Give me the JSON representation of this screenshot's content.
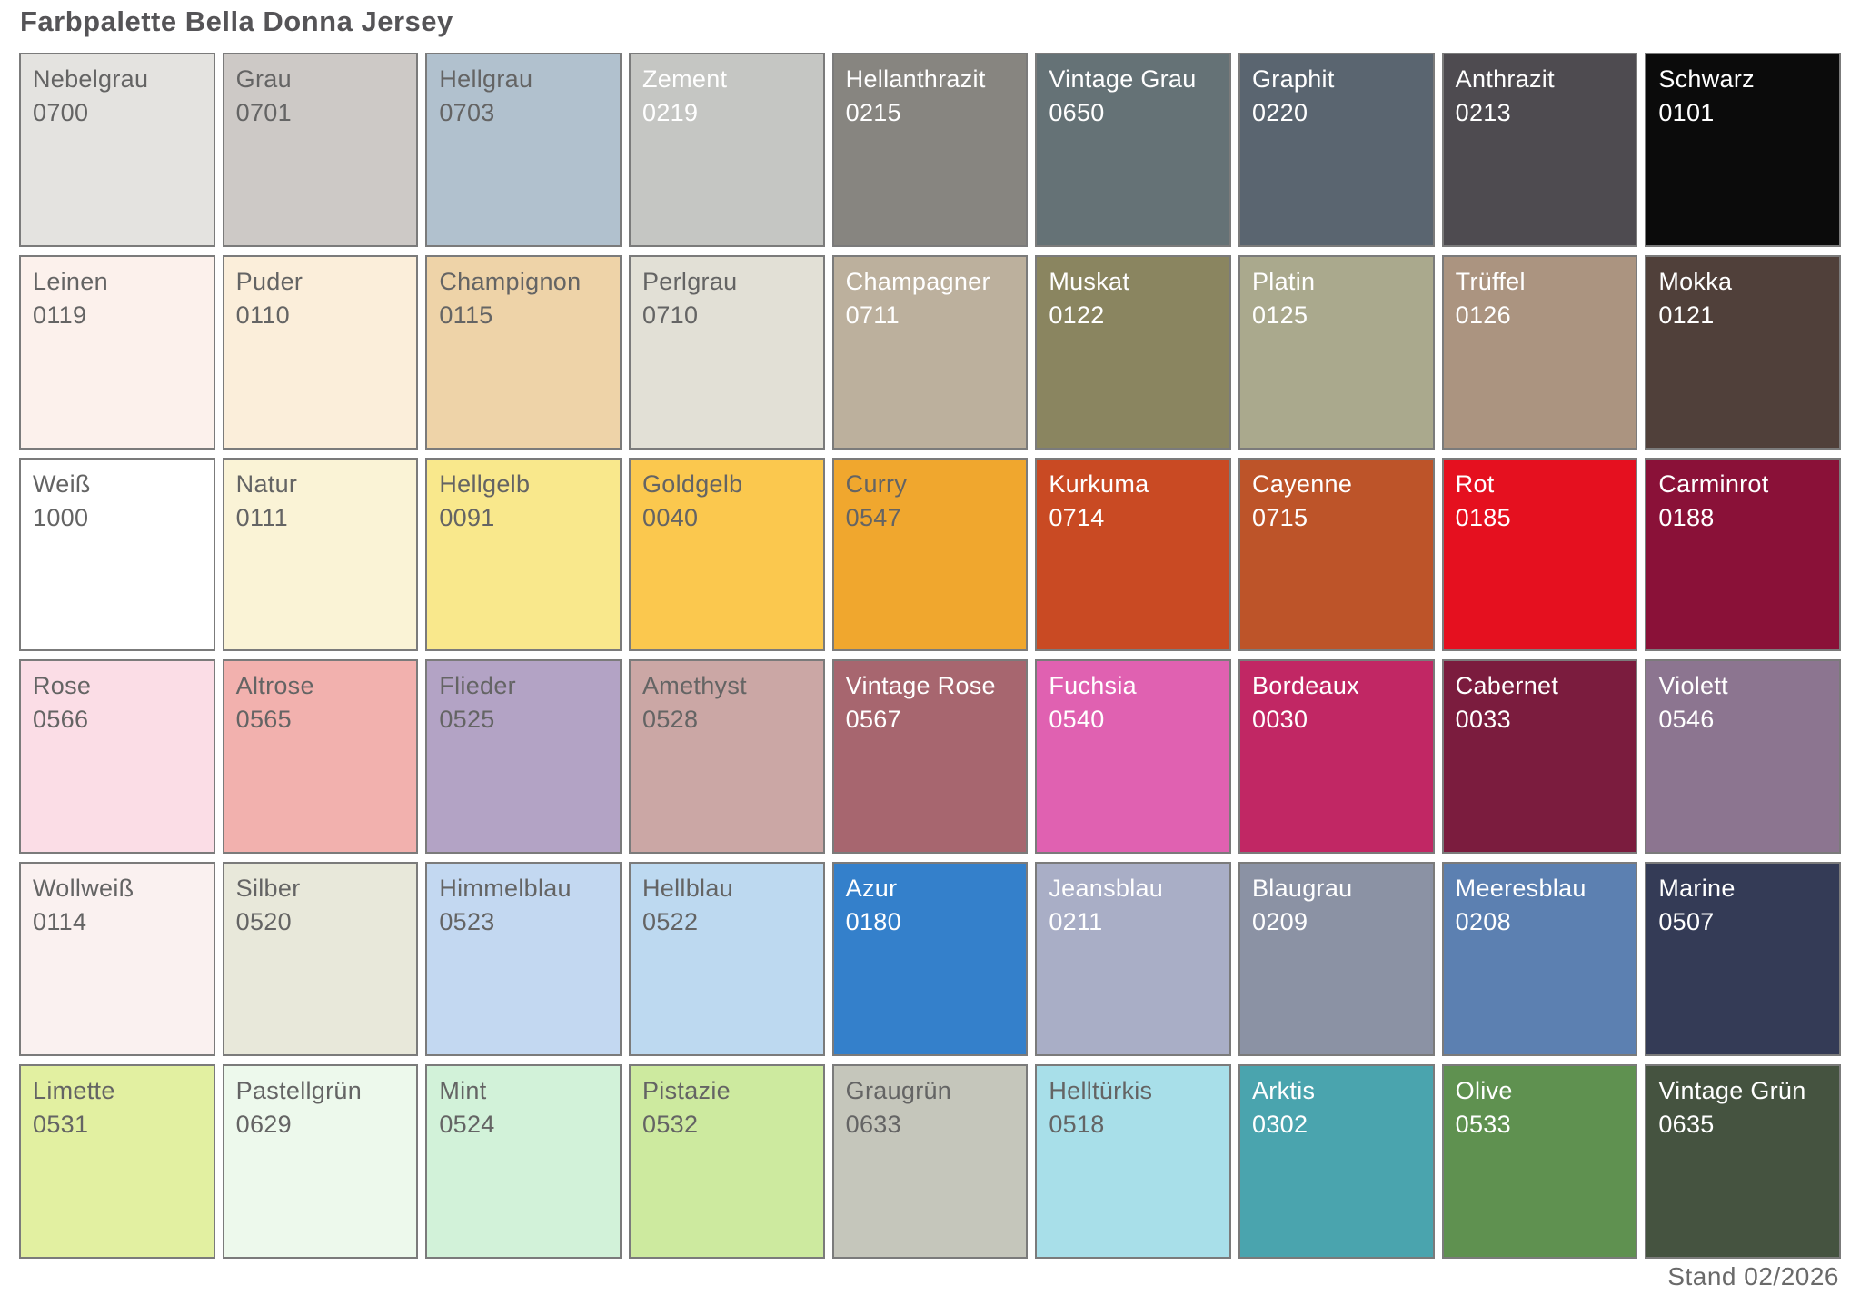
{
  "title": "Farbpalette Bella Donna Jersey",
  "footer": {
    "stand_label": "Stand 02/2026"
  },
  "palette": {
    "columns": 9,
    "rows": 6,
    "text_colors": {
      "dark": "#646464",
      "light": "#ffffff"
    },
    "border_color": "#7b7b7b",
    "swatches": [
      {
        "name": "Nebelgrau",
        "code": "0700",
        "color": "#e4e3e0",
        "text": "dark"
      },
      {
        "name": "Grau",
        "code": "0701",
        "color": "#cdc9c6",
        "text": "dark"
      },
      {
        "name": "Hellgrau",
        "code": "0703",
        "color": "#b1c1ce",
        "text": "dark"
      },
      {
        "name": "Zement",
        "code": "0219",
        "color": "#c5c6c3",
        "text": "light"
      },
      {
        "name": "Hellanthrazit",
        "code": "0215",
        "color": "#878580",
        "text": "light"
      },
      {
        "name": "Vintage Grau",
        "code": "0650",
        "color": "#657276",
        "text": "light"
      },
      {
        "name": "Graphit",
        "code": "0220",
        "color": "#5a6570",
        "text": "light"
      },
      {
        "name": "Anthrazit",
        "code": "0213",
        "color": "#4e4b50",
        "text": "light"
      },
      {
        "name": "Schwarz",
        "code": "0101",
        "color": "#0b0b0b",
        "text": "light"
      },
      {
        "name": "Leinen",
        "code": "0119",
        "color": "#fcf1ec",
        "text": "dark"
      },
      {
        "name": "Puder",
        "code": "0110",
        "color": "#fbeeda",
        "text": "dark"
      },
      {
        "name": "Champignon",
        "code": "0115",
        "color": "#eed3a8",
        "text": "dark"
      },
      {
        "name": "Perlgrau",
        "code": "0710",
        "color": "#e2e0d6",
        "text": "dark"
      },
      {
        "name": "Champagner",
        "code": "0711",
        "color": "#bcb09d",
        "text": "light"
      },
      {
        "name": "Muskat",
        "code": "0122",
        "color": "#8a8560",
        "text": "light"
      },
      {
        "name": "Platin",
        "code": "0125",
        "color": "#aaa98d",
        "text": "light"
      },
      {
        "name": "Trüffel",
        "code": "0126",
        "color": "#ab9480",
        "text": "light"
      },
      {
        "name": "Mokka",
        "code": "0121",
        "color": "#50403a",
        "text": "light"
      },
      {
        "name": "Weiß",
        "code": "1000",
        "color": "#ffffff",
        "text": "dark"
      },
      {
        "name": "Natur",
        "code": "0111",
        "color": "#faf3d6",
        "text": "dark"
      },
      {
        "name": "Hellgelb",
        "code": "0091",
        "color": "#f9e88c",
        "text": "dark"
      },
      {
        "name": "Goldgelb",
        "code": "0040",
        "color": "#fbc84e",
        "text": "dark"
      },
      {
        "name": "Curry",
        "code": "0547",
        "color": "#f0a72e",
        "text": "dark"
      },
      {
        "name": "Kurkuma",
        "code": "0714",
        "color": "#c94a23",
        "text": "light"
      },
      {
        "name": "Cayenne",
        "code": "0715",
        "color": "#bd5429",
        "text": "light"
      },
      {
        "name": "Rot",
        "code": "0185",
        "color": "#e5101f",
        "text": "light"
      },
      {
        "name": "Carminrot",
        "code": "0188",
        "color": "#8a1138",
        "text": "light"
      },
      {
        "name": "Rose",
        "code": "0566",
        "color": "#fbdde6",
        "text": "dark"
      },
      {
        "name": "Altrose",
        "code": "0565",
        "color": "#f2b1ae",
        "text": "dark"
      },
      {
        "name": "Flieder",
        "code": "0525",
        "color": "#b3a3c5",
        "text": "dark"
      },
      {
        "name": "Amethyst",
        "code": "0528",
        "color": "#cba7a5",
        "text": "dark"
      },
      {
        "name": "Vintage Rose",
        "code": "0567",
        "color": "#a7666f",
        "text": "light"
      },
      {
        "name": "Fuchsia",
        "code": "0540",
        "color": "#e061b1",
        "text": "light"
      },
      {
        "name": "Bordeaux",
        "code": "0030",
        "color": "#c12764",
        "text": "light"
      },
      {
        "name": "Cabernet",
        "code": "0033",
        "color": "#7b1c3e",
        "text": "light"
      },
      {
        "name": "Violett",
        "code": "0546",
        "color": "#8c7590",
        "text": "light"
      },
      {
        "name": "Wollweiß",
        "code": "0114",
        "color": "#faf1f0",
        "text": "dark"
      },
      {
        "name": "Silber",
        "code": "0520",
        "color": "#e8e8da",
        "text": "dark"
      },
      {
        "name": "Himmelblau",
        "code": "0523",
        "color": "#c3d8f1",
        "text": "dark"
      },
      {
        "name": "Hellblau",
        "code": "0522",
        "color": "#bdd9f0",
        "text": "dark"
      },
      {
        "name": "Azur",
        "code": "0180",
        "color": "#3480cb",
        "text": "light"
      },
      {
        "name": "Jeansblau",
        "code": "0211",
        "color": "#a9aec6",
        "text": "light"
      },
      {
        "name": "Blaugrau",
        "code": "0209",
        "color": "#8b92a4",
        "text": "light"
      },
      {
        "name": "Meeresblau",
        "code": "0208",
        "color": "#5c80b1",
        "text": "light"
      },
      {
        "name": "Marine",
        "code": "0507",
        "color": "#343b56",
        "text": "light"
      },
      {
        "name": "Limette",
        "code": "0531",
        "color": "#e2f0a1",
        "text": "dark"
      },
      {
        "name": "Pastellgrün",
        "code": "0629",
        "color": "#edf9ec",
        "text": "dark"
      },
      {
        "name": "Mint",
        "code": "0524",
        "color": "#d2f2d9",
        "text": "dark"
      },
      {
        "name": "Pistazie",
        "code": "0532",
        "color": "#cdea9f",
        "text": "dark"
      },
      {
        "name": "Graugrün",
        "code": "0633",
        "color": "#c5c6bb",
        "text": "dark"
      },
      {
        "name": "Helltürkis",
        "code": "0518",
        "color": "#a8dfe9",
        "text": "dark"
      },
      {
        "name": "Arktis",
        "code": "0302",
        "color": "#4aa4ae",
        "text": "light"
      },
      {
        "name": "Olive",
        "code": "0533",
        "color": "#5f9150",
        "text": "light"
      },
      {
        "name": "Vintage Grün",
        "code": "0635",
        "color": "#455340",
        "text": "light"
      }
    ]
  }
}
